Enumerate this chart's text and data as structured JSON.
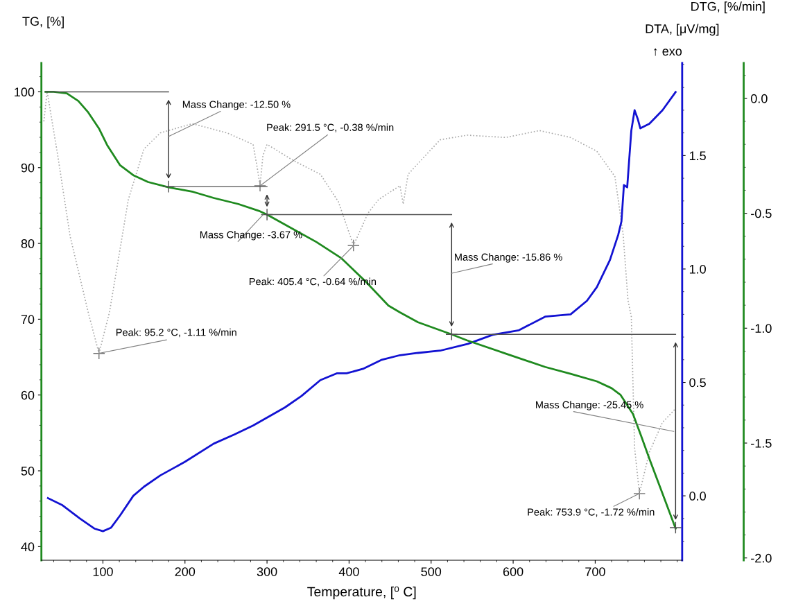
{
  "chart_data": {
    "type": "line",
    "xlabel": "Temperature, [⁰ C]",
    "ylabel": "TG, [%]",
    "y2label": "DTA, [μV/mg]",
    "y3label": "DTG, [%/min]",
    "xlim": [
      25,
      806
    ],
    "xticks": [
      100,
      200,
      300,
      400,
      500,
      600,
      700
    ],
    "ylim": [
      38.2,
      103.8
    ],
    "yticks": [
      40,
      50,
      60,
      70,
      80,
      90,
      100
    ],
    "y2lim": [
      -0.284,
      1.908
    ],
    "y2ticks": [
      {
        "value": 0,
        "label": "0.0"
      },
      {
        "value": 0.5,
        "label": "0.5"
      },
      {
        "value": 1,
        "label": "1.0"
      },
      {
        "value": 1.5,
        "label": "1.5"
      }
    ],
    "y3lim": [
      -2.01,
      0.154
    ],
    "y3ticks": [
      {
        "value": -2,
        "label": "-2.0"
      },
      {
        "value": -1.5,
        "label": "-1.5"
      },
      {
        "value": -1,
        "label": "-1.0"
      },
      {
        "value": -0.5,
        "label": "-0.5"
      },
      {
        "value": 0,
        "label": "0.0"
      }
    ],
    "grid": false,
    "legend": false,
    "series": [
      {
        "axis": "y",
        "color": "#1f8a1f",
        "x": [
          30,
          40,
          56,
          70,
          82,
          95,
          105,
          121,
          137,
          155,
          180,
          210,
          235,
          265,
          290,
          300,
          330,
          360,
          390,
          420,
          448,
          462,
          484,
          525,
          544,
          590,
          639,
          670,
          702,
          720,
          731,
          746,
          756,
          766,
          782,
          798
        ],
        "values": [
          100,
          100,
          99.8,
          98.8,
          97.3,
          95.2,
          93.0,
          90.3,
          89.0,
          88.1,
          87.4,
          86.8,
          86.0,
          85.2,
          84.3,
          83.8,
          82.0,
          80.2,
          78.1,
          75.0,
          71.8,
          70.9,
          69.6,
          68.0,
          67.2,
          65.5,
          63.7,
          62.8,
          61.8,
          60.9,
          60.0,
          57.5,
          54.6,
          51.6,
          47.0,
          42.4
        ]
      },
      {
        "axis": "y2",
        "color": "#1212d2",
        "x": [
          33,
          50,
          72,
          90,
          100,
          110,
          121,
          137,
          150,
          170,
          200,
          235,
          260,
          283,
          322,
          342,
          365,
          385,
          397,
          417,
          440,
          462,
          484,
          511,
          545,
          575,
          607,
          639,
          670,
          690,
          702,
          718,
          728,
          732,
          735,
          739,
          744,
          748,
          752,
          755,
          766,
          782,
          798
        ],
        "values": [
          -0.01,
          -0.04,
          -0.1,
          -0.145,
          -0.156,
          -0.14,
          -0.086,
          0,
          0.04,
          0.09,
          0.15,
          0.23,
          0.27,
          0.31,
          0.39,
          0.44,
          0.51,
          0.54,
          0.54,
          0.56,
          0.6,
          0.62,
          0.63,
          0.64,
          0.67,
          0.71,
          0.73,
          0.79,
          0.8,
          0.86,
          0.92,
          1.04,
          1.15,
          1.21,
          1.37,
          1.36,
          1.61,
          1.7,
          1.66,
          1.62,
          1.64,
          1.7,
          1.78
        ]
      },
      {
        "axis": "y3",
        "color": "#a8a8a8",
        "line_style": "dotted",
        "x": [
          28,
          32,
          45,
          60,
          82,
          95.2,
          108,
          131,
          150,
          170,
          209,
          251,
          283,
          288,
          291.5,
          295,
          300,
          332,
          365,
          387,
          405.4,
          423,
          436,
          462,
          466,
          472,
          511,
          544,
          591,
          632,
          670,
          702,
          724,
          734,
          740,
          744,
          748,
          753.9,
          766,
          782,
          798
        ],
        "values": [
          -0.1,
          0.03,
          -0.25,
          -0.6,
          -0.93,
          -1.11,
          -0.93,
          -0.44,
          -0.22,
          -0.15,
          -0.11,
          -0.15,
          -0.2,
          -0.3,
          -0.38,
          -0.25,
          -0.2,
          -0.27,
          -0.33,
          -0.45,
          -0.64,
          -0.5,
          -0.44,
          -0.38,
          -0.46,
          -0.33,
          -0.18,
          -0.16,
          -0.17,
          -0.14,
          -0.17,
          -0.23,
          -0.34,
          -0.59,
          -0.88,
          -0.95,
          -1.52,
          -1.72,
          -1.54,
          -1.41,
          -1.35
        ]
      },
      {
        "type": "scatter",
        "axis": "y3",
        "color": "#707070",
        "marker": "cross",
        "x": [
          95.2,
          291.5,
          405.4,
          753.9
        ],
        "values": [
          -1.11,
          -0.38,
          -0.64,
          -1.72
        ]
      },
      {
        "color": "#505050",
        "x": [
          30,
          180
        ],
        "values": [
          100,
          100
        ]
      },
      {
        "color": "#505050",
        "marker": "cross",
        "x": [
          180,
          300
        ],
        "values": [
          87.5,
          87.5
        ]
      },
      {
        "color": "#505050",
        "marker": "cross",
        "x": [
          300,
          525
        ],
        "values": [
          83.8,
          83.8
        ]
      },
      {
        "color": "#505050",
        "marker": "cross",
        "x": [
          525,
          798
        ],
        "values": [
          68.0,
          68.0
        ]
      },
      {
        "color": "#505050",
        "marker": "cross",
        "x": [
          798
        ],
        "values": [
          42.5
        ]
      }
    ],
    "annotations": [
      "Mass Change: -12.50 %",
      {
        "text": "Peak: 291.5 °C, -0.38 %/min",
        "x": 291.5,
        "y": 87.6
      },
      "Mass Change: -3.67 %",
      {
        "text": "Peak: 405.4 °C, -0.64 %/min",
        "x": 405.4,
        "y": 79.7
      },
      "Mass Change: -15.86 %",
      {
        "text": "Peak: 95.2 °C, -1.11 %/min",
        "x": 95.2,
        "y": 65.5
      },
      "Mass Change: -25.45 %",
      {
        "text": "Peak: 753.9 °C, -1.72 %/min",
        "x": 753.9,
        "y": 47.0
      },
      "↑ exo"
    ]
  }
}
